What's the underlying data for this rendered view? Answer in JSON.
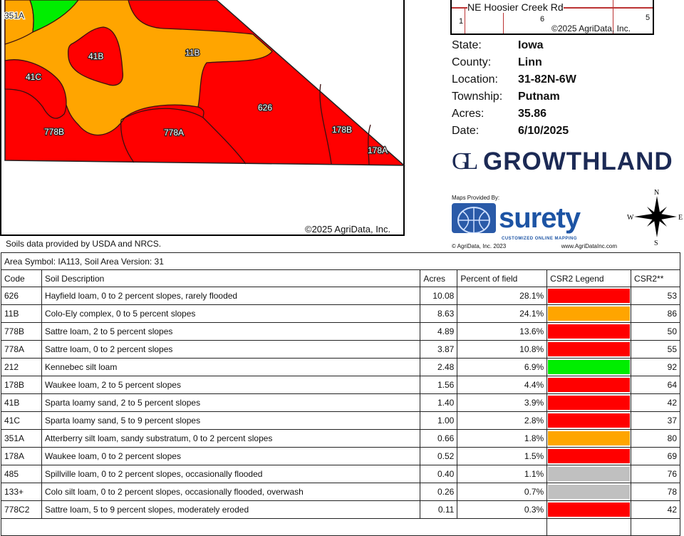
{
  "map": {
    "labels": [
      "351A",
      "41B",
      "11B",
      "41C",
      "626",
      "778B",
      "778A",
      "178B",
      "178A"
    ],
    "copyright": "©2025 AgriData, Inc.",
    "source_note": "Soils data provided by USDA and NRCS."
  },
  "inset": {
    "road": "NE Hoosier Creek Rd",
    "sections": [
      "1",
      "6",
      "5"
    ],
    "copyright": "©2025 AgriData, Inc."
  },
  "info": [
    {
      "k": "State:",
      "v": "Iowa"
    },
    {
      "k": "County:",
      "v": "Linn"
    },
    {
      "k": "Location:",
      "v": "31-82N-6W"
    },
    {
      "k": "Township:",
      "v": "Putnam"
    },
    {
      "k": "Acres:",
      "v": "35.86"
    },
    {
      "k": "Date:",
      "v": "6/10/2025"
    }
  ],
  "growthland": {
    "monogram": "GL",
    "name": "GROWTHLAND"
  },
  "surety": {
    "provided_by": "Maps Provided By:",
    "name": "surety",
    "tagline": "CUSTOMIZED ONLINE MAPPING",
    "copyright": "© AgriData, Inc. 2023",
    "url": "www.AgriDataInc.com"
  },
  "compass": {
    "n": "N",
    "s": "S",
    "e": "E",
    "w": "W"
  },
  "colors": {
    "red": "#ff0000",
    "orange": "#ffa500",
    "green": "#00ee00",
    "gray": "#c0c0c0"
  },
  "table": {
    "area_symbol": "Area Symbol: IA113, Soil Area Version: 31",
    "headers": [
      "Code",
      "Soil Description",
      "Acres",
      "Percent of field",
      "CSR2 Legend",
      "CSR2**"
    ],
    "rows": [
      {
        "code": "626",
        "desc": "Hayfield loam, 0 to 2 percent slopes, rarely flooded",
        "acres": "10.08",
        "pct": "28.1%",
        "color": "#ff0000",
        "csr2": "53"
      },
      {
        "code": "11B",
        "desc": "Colo-Ely complex, 0 to 5 percent slopes",
        "acres": "8.63",
        "pct": "24.1%",
        "color": "#ffa500",
        "csr2": "86"
      },
      {
        "code": "778B",
        "desc": "Sattre loam, 2 to 5 percent slopes",
        "acres": "4.89",
        "pct": "13.6%",
        "color": "#ff0000",
        "csr2": "50"
      },
      {
        "code": "778A",
        "desc": "Sattre loam, 0 to 2 percent slopes",
        "acres": "3.87",
        "pct": "10.8%",
        "color": "#ff0000",
        "csr2": "55"
      },
      {
        "code": "212",
        "desc": "Kennebec silt loam",
        "acres": "2.48",
        "pct": "6.9%",
        "color": "#00ee00",
        "csr2": "92"
      },
      {
        "code": "178B",
        "desc": "Waukee loam, 2 to 5 percent slopes",
        "acres": "1.56",
        "pct": "4.4%",
        "color": "#ff0000",
        "csr2": "64"
      },
      {
        "code": "41B",
        "desc": "Sparta loamy sand, 2 to 5 percent slopes",
        "acres": "1.40",
        "pct": "3.9%",
        "color": "#ff0000",
        "csr2": "42"
      },
      {
        "code": "41C",
        "desc": "Sparta loamy sand, 5 to 9 percent slopes",
        "acres": "1.00",
        "pct": "2.8%",
        "color": "#ff0000",
        "csr2": "37"
      },
      {
        "code": "351A",
        "desc": "Atterberry silt loam, sandy substratum, 0 to 2 percent slopes",
        "acres": "0.66",
        "pct": "1.8%",
        "color": "#ffa500",
        "csr2": "80"
      },
      {
        "code": "178A",
        "desc": "Waukee loam, 0 to 2 percent slopes",
        "acres": "0.52",
        "pct": "1.5%",
        "color": "#ff0000",
        "csr2": "69"
      },
      {
        "code": "485",
        "desc": "Spillville loam, 0 to 2 percent slopes, occasionally flooded",
        "acres": "0.40",
        "pct": "1.1%",
        "color": "#c0c0c0",
        "csr2": "76"
      },
      {
        "code": "133+",
        "desc": "Colo silt loam, 0 to 2 percent slopes, occasionally flooded, overwash",
        "acres": "0.26",
        "pct": "0.7%",
        "color": "#c0c0c0",
        "csr2": "78"
      },
      {
        "code": "778C2",
        "desc": "Sattre loam, 5 to 9 percent slopes, moderately eroded",
        "acres": "0.11",
        "pct": "0.3%",
        "color": "#ff0000",
        "csr2": "42"
      }
    ]
  }
}
